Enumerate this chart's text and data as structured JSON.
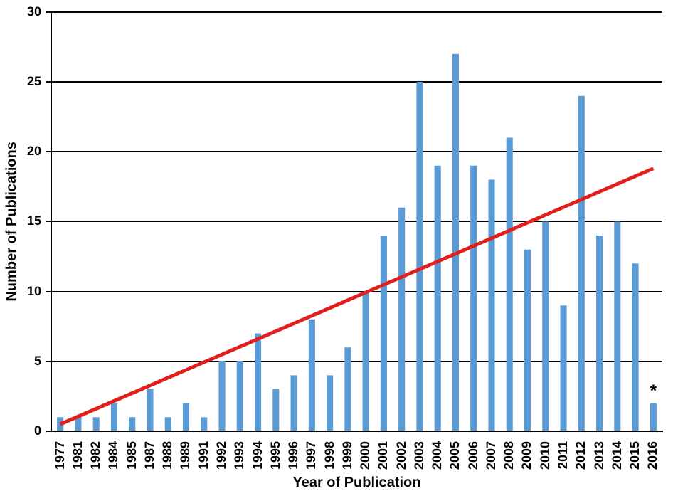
{
  "chart_data": {
    "type": "bar",
    "xlabel": "Year of Publication",
    "ylabel": "Number of Publications",
    "categories": [
      "1977",
      "1981",
      "1982",
      "1984",
      "1985",
      "1987",
      "1988",
      "1989",
      "1991",
      "1992",
      "1993",
      "1994",
      "1995",
      "1996",
      "1997",
      "1998",
      "1999",
      "2000",
      "2001",
      "2002",
      "2003",
      "2004",
      "2005",
      "2006",
      "2007",
      "2008",
      "2009",
      "2010",
      "2011",
      "2012",
      "2013",
      "2014",
      "2015",
      "2016"
    ],
    "series": [
      {
        "color": "#5b9bd5",
        "values": [
          1,
          1,
          1,
          2,
          1,
          3,
          1,
          2,
          1,
          5,
          5,
          7,
          3,
          4,
          8,
          4,
          6,
          10,
          14,
          16,
          25,
          19,
          27,
          19,
          18,
          21,
          13,
          15,
          9,
          24,
          14,
          15,
          12,
          2
        ]
      },
      {
        "type": "line",
        "color": "#e0201c",
        "values": [
          0.5,
          null,
          null,
          null,
          null,
          null,
          null,
          null,
          null,
          null,
          null,
          null,
          null,
          null,
          null,
          null,
          null,
          null,
          null,
          null,
          null,
          null,
          null,
          null,
          null,
          null,
          null,
          null,
          null,
          null,
          null,
          null,
          null,
          18.8
        ]
      }
    ],
    "ylim": [
      0,
      30
    ],
    "yticks": [
      0,
      5,
      10,
      15,
      20,
      25,
      30
    ],
    "grid": "y",
    "legend": false,
    "marker": "none",
    "annotations": [
      {
        "text": "*",
        "x": "2016",
        "y": 2
      }
    ]
  }
}
